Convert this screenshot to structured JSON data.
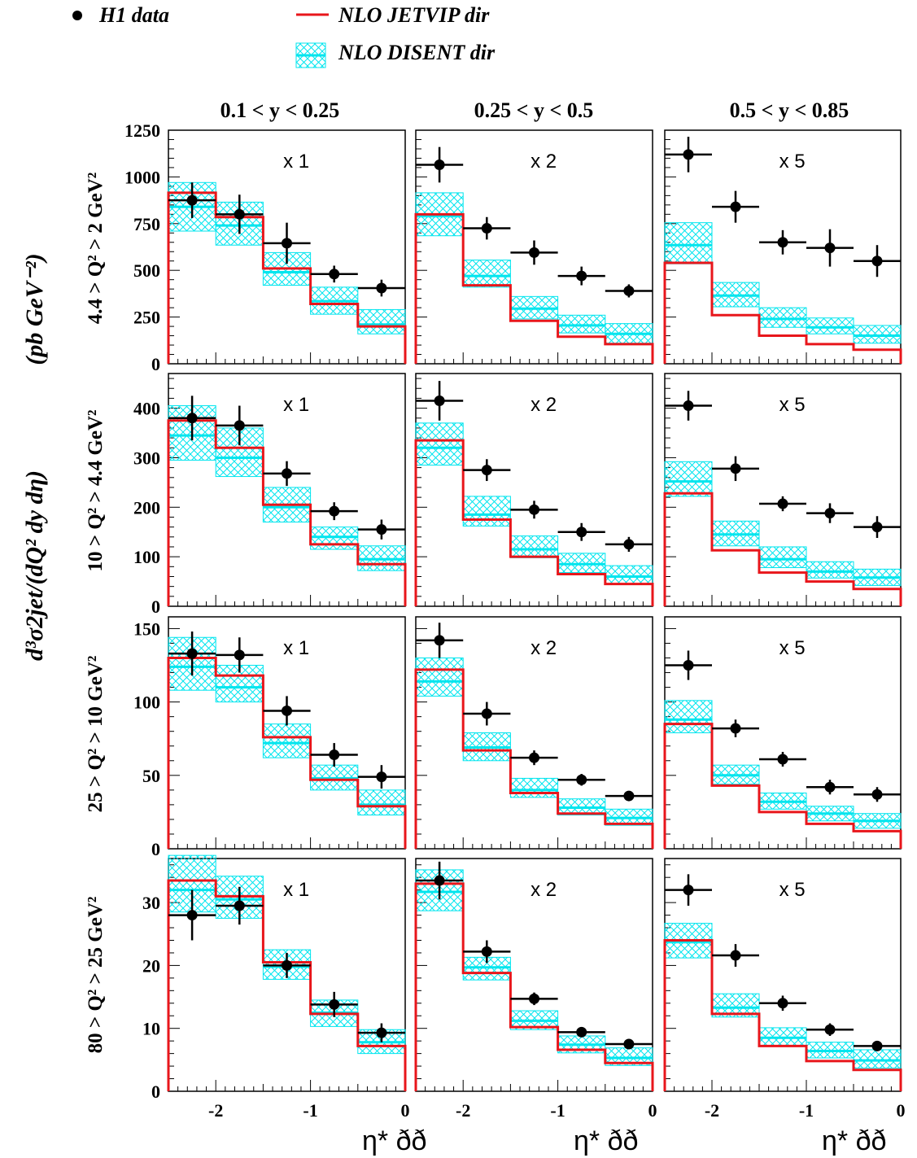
{
  "legend": {
    "data_label": "H1 data",
    "jetvip_label": "NLO JETVIP dir",
    "disent_label": "NLO DISENT dir"
  },
  "colors": {
    "data": "#000000",
    "jetvip": "#e8161b",
    "disent": "#00e5ee",
    "frame": "#000000"
  },
  "axis": {
    "ylabel_main": "d³σ2jet/(dQ² dy dη)",
    "ylabel_units": "(pb GeV⁻²)",
    "xlabel": "η* ðð",
    "xticks": [
      -2,
      -1,
      0
    ],
    "xlim": [
      -2.5,
      0
    ]
  },
  "columns": [
    {
      "label": "0.1 < y < 0.25",
      "scale": "x 1"
    },
    {
      "label": "0.25 < y < 0.5",
      "scale": "x 2"
    },
    {
      "label": "0.5 < y < 0.85",
      "scale": "x 5"
    }
  ],
  "rows": [
    {
      "label": "4.4 > Q² > 2 GeV²",
      "ylim": [
        0,
        1250
      ],
      "yticks": [
        0,
        250,
        500,
        750,
        1000,
        1250
      ]
    },
    {
      "label": "10 > Q² > 4.4 GeV²",
      "ylim": [
        0,
        470
      ],
      "yticks": [
        0,
        100,
        200,
        300,
        400
      ]
    },
    {
      "label": "25 > Q² > 10 GeV²",
      "ylim": [
        0,
        158
      ],
      "yticks": [
        0,
        50,
        100,
        150
      ]
    },
    {
      "label": "80 > Q² > 25 GeV²",
      "ylim": [
        0,
        37
      ],
      "yticks": [
        0,
        10,
        20,
        30
      ]
    }
  ],
  "chart_data": {
    "type": "scatter",
    "x_bin_edges": [
      -2.5,
      -2.0,
      -1.5,
      -1.0,
      -0.5,
      0.0
    ],
    "panels": [
      {
        "row": 0,
        "col": 0,
        "data": [
          {
            "x": -2.25,
            "y": 875,
            "err": 95
          },
          {
            "x": -1.75,
            "y": 800,
            "err": 105
          },
          {
            "x": -1.25,
            "y": 645,
            "err": 110
          },
          {
            "x": -0.75,
            "y": 480,
            "err": 45
          },
          {
            "x": -0.25,
            "y": 405,
            "err": 45
          }
        ],
        "jetvip": [
          915,
          785,
          510,
          320,
          200
        ],
        "disent": [
          {
            "c": 840,
            "lo": 710,
            "hi": 970
          },
          {
            "c": 740,
            "lo": 635,
            "hi": 865
          },
          {
            "c": 490,
            "lo": 420,
            "hi": 595
          },
          {
            "c": 335,
            "lo": 265,
            "hi": 410
          },
          {
            "c": 210,
            "lo": 160,
            "hi": 290
          }
        ]
      },
      {
        "row": 0,
        "col": 1,
        "data": [
          {
            "x": -2.25,
            "y": 1065,
            "err": 95
          },
          {
            "x": -1.75,
            "y": 725,
            "err": 60
          },
          {
            "x": -1.25,
            "y": 595,
            "err": 65
          },
          {
            "x": -0.75,
            "y": 470,
            "err": 50
          },
          {
            "x": -0.25,
            "y": 390,
            "err": 35
          }
        ],
        "jetvip": [
          800,
          420,
          230,
          145,
          105
        ],
        "disent": [
          {
            "c": 790,
            "lo": 685,
            "hi": 915
          },
          {
            "c": 470,
            "lo": 410,
            "hi": 555
          },
          {
            "c": 295,
            "lo": 240,
            "hi": 360
          },
          {
            "c": 205,
            "lo": 165,
            "hi": 260
          },
          {
            "c": 160,
            "lo": 110,
            "hi": 215
          }
        ]
      },
      {
        "row": 0,
        "col": 2,
        "data": [
          {
            "x": -2.25,
            "y": 1120,
            "err": 95
          },
          {
            "x": -1.75,
            "y": 840,
            "err": 85
          },
          {
            "x": -1.25,
            "y": 650,
            "err": 65
          },
          {
            "x": -0.75,
            "y": 620,
            "err": 100
          },
          {
            "x": -0.25,
            "y": 550,
            "err": 85
          }
        ],
        "jetvip": [
          540,
          260,
          150,
          105,
          75
        ],
        "disent": [
          {
            "c": 635,
            "lo": 535,
            "hi": 755
          },
          {
            "c": 365,
            "lo": 305,
            "hi": 435
          },
          {
            "c": 240,
            "lo": 195,
            "hi": 300
          },
          {
            "c": 195,
            "lo": 160,
            "hi": 245
          },
          {
            "c": 150,
            "lo": 110,
            "hi": 205
          }
        ]
      },
      {
        "row": 1,
        "col": 0,
        "data": [
          {
            "x": -2.25,
            "y": 380,
            "err": 45
          },
          {
            "x": -1.75,
            "y": 365,
            "err": 40
          },
          {
            "x": -1.25,
            "y": 268,
            "err": 25
          },
          {
            "x": -0.75,
            "y": 192,
            "err": 18
          },
          {
            "x": -0.25,
            "y": 155,
            "err": 20
          }
        ],
        "jetvip": [
          375,
          320,
          205,
          125,
          85
        ],
        "disent": [
          {
            "c": 345,
            "lo": 295,
            "hi": 405
          },
          {
            "c": 300,
            "lo": 262,
            "hi": 360
          },
          {
            "c": 200,
            "lo": 170,
            "hi": 240
          },
          {
            "c": 140,
            "lo": 115,
            "hi": 160
          },
          {
            "c": 95,
            "lo": 72,
            "hi": 122
          }
        ]
      },
      {
        "row": 1,
        "col": 1,
        "data": [
          {
            "x": -2.25,
            "y": 415,
            "err": 40
          },
          {
            "x": -1.75,
            "y": 275,
            "err": 22
          },
          {
            "x": -1.25,
            "y": 195,
            "err": 18
          },
          {
            "x": -0.75,
            "y": 150,
            "err": 18
          },
          {
            "x": -0.25,
            "y": 125,
            "err": 15
          }
        ],
        "jetvip": [
          335,
          175,
          100,
          65,
          45
        ],
        "disent": [
          {
            "c": 320,
            "lo": 285,
            "hi": 370
          },
          {
            "c": 185,
            "lo": 162,
            "hi": 222
          },
          {
            "c": 115,
            "lo": 98,
            "hi": 142
          },
          {
            "c": 85,
            "lo": 68,
            "hi": 107
          },
          {
            "c": 60,
            "lo": 45,
            "hi": 82
          }
        ]
      },
      {
        "row": 1,
        "col": 2,
        "data": [
          {
            "x": -2.25,
            "y": 405,
            "err": 30
          },
          {
            "x": -1.75,
            "y": 278,
            "err": 25
          },
          {
            "x": -1.25,
            "y": 207,
            "err": 15
          },
          {
            "x": -0.75,
            "y": 188,
            "err": 20
          },
          {
            "x": -0.25,
            "y": 160,
            "err": 22
          }
        ],
        "jetvip": [
          228,
          113,
          68,
          50,
          35
        ],
        "disent": [
          {
            "c": 252,
            "lo": 222,
            "hi": 292
          },
          {
            "c": 145,
            "lo": 122,
            "hi": 172
          },
          {
            "c": 95,
            "lo": 78,
            "hi": 120
          },
          {
            "c": 70,
            "lo": 57,
            "hi": 90
          },
          {
            "c": 58,
            "lo": 42,
            "hi": 75
          }
        ]
      },
      {
        "row": 2,
        "col": 0,
        "data": [
          {
            "x": -2.25,
            "y": 133,
            "err": 15
          },
          {
            "x": -1.75,
            "y": 132,
            "err": 12
          },
          {
            "x": -1.25,
            "y": 94,
            "err": 10
          },
          {
            "x": -0.75,
            "y": 64,
            "err": 8
          },
          {
            "x": -0.25,
            "y": 49,
            "err": 8
          }
        ],
        "jetvip": [
          130,
          118,
          76,
          47,
          29
        ],
        "disent": [
          {
            "c": 124,
            "lo": 108,
            "hi": 144
          },
          {
            "c": 110,
            "lo": 100,
            "hi": 125
          },
          {
            "c": 72,
            "lo": 62,
            "hi": 85
          },
          {
            "c": 48,
            "lo": 40,
            "hi": 57
          },
          {
            "c": 30,
            "lo": 23,
            "hi": 40
          }
        ]
      },
      {
        "row": 2,
        "col": 1,
        "data": [
          {
            "x": -2.25,
            "y": 142,
            "err": 12
          },
          {
            "x": -1.75,
            "y": 92,
            "err": 8
          },
          {
            "x": -1.25,
            "y": 62,
            "err": 5
          },
          {
            "x": -0.75,
            "y": 47,
            "err": 4
          },
          {
            "x": -0.25,
            "y": 36,
            "err": 3
          }
        ],
        "jetvip": [
          122,
          67,
          38,
          24,
          17
        ],
        "disent": [
          {
            "c": 114,
            "lo": 104,
            "hi": 130
          },
          {
            "c": 69,
            "lo": 60,
            "hi": 79
          },
          {
            "c": 40,
            "lo": 35,
            "hi": 48
          },
          {
            "c": 28,
            "lo": 23,
            "hi": 34
          },
          {
            "c": 21,
            "lo": 16,
            "hi": 27
          }
        ]
      },
      {
        "row": 2,
        "col": 2,
        "data": [
          {
            "x": -2.25,
            "y": 125,
            "err": 10
          },
          {
            "x": -1.75,
            "y": 82,
            "err": 6
          },
          {
            "x": -1.25,
            "y": 61,
            "err": 5
          },
          {
            "x": -0.75,
            "y": 42,
            "err": 5
          },
          {
            "x": -0.25,
            "y": 37,
            "err": 5
          }
        ],
        "jetvip": [
          85,
          43,
          25,
          17,
          12
        ],
        "disent": [
          {
            "c": 88,
            "lo": 79,
            "hi": 101
          },
          {
            "c": 50,
            "lo": 44,
            "hi": 57
          },
          {
            "c": 32,
            "lo": 27,
            "hi": 38
          },
          {
            "c": 24,
            "lo": 19,
            "hi": 29
          },
          {
            "c": 19,
            "lo": 14,
            "hi": 24
          }
        ]
      },
      {
        "row": 3,
        "col": 0,
        "data": [
          {
            "x": -2.25,
            "y": 28,
            "err": 4
          },
          {
            "x": -1.75,
            "y": 29.5,
            "err": 3
          },
          {
            "x": -1.25,
            "y": 20,
            "err": 2
          },
          {
            "x": -0.75,
            "y": 13.8,
            "err": 2
          },
          {
            "x": -0.25,
            "y": 9.3,
            "err": 1.5
          }
        ],
        "jetvip": [
          33.5,
          31,
          20.5,
          12.3,
          7.2
        ],
        "disent": [
          {
            "c": 32,
            "lo": 28.5,
            "hi": 37.5
          },
          {
            "c": 30.5,
            "lo": 27.5,
            "hi": 34.2
          },
          {
            "c": 19.8,
            "lo": 17.8,
            "hi": 22.5
          },
          {
            "c": 12.5,
            "lo": 10.3,
            "hi": 14.5
          },
          {
            "c": 7.8,
            "lo": 6,
            "hi": 9.8
          }
        ]
      },
      {
        "row": 3,
        "col": 1,
        "data": [
          {
            "x": -2.25,
            "y": 33.5,
            "err": 3
          },
          {
            "x": -1.75,
            "y": 22.2,
            "err": 1.8
          },
          {
            "x": -1.25,
            "y": 14.7,
            "err": 1
          },
          {
            "x": -0.75,
            "y": 9.4,
            "err": 0.7
          },
          {
            "x": -0.25,
            "y": 7.5,
            "err": 0.5
          }
        ],
        "jetvip": [
          33,
          18.8,
          10.2,
          6.6,
          4.5
        ],
        "disent": [
          {
            "c": 31.7,
            "lo": 28.7,
            "hi": 35.2
          },
          {
            "c": 19.7,
            "lo": 17.7,
            "hi": 21.3
          },
          {
            "c": 11.2,
            "lo": 9.8,
            "hi": 12.8
          },
          {
            "c": 7.4,
            "lo": 6.1,
            "hi": 8.8
          },
          {
            "c": 5.3,
            "lo": 4.1,
            "hi": 6.9
          }
        ]
      },
      {
        "row": 3,
        "col": 2,
        "data": [
          {
            "x": -2.25,
            "y": 32,
            "err": 2.5
          },
          {
            "x": -1.75,
            "y": 21.6,
            "err": 1.8
          },
          {
            "x": -1.25,
            "y": 14,
            "err": 1.2
          },
          {
            "x": -0.75,
            "y": 9.8,
            "err": 1
          },
          {
            "x": -0.25,
            "y": 7.2,
            "err": 0.6
          }
        ],
        "jetvip": [
          24,
          12.3,
          7.2,
          4.8,
          3.4
        ],
        "disent": [
          {
            "c": 23.7,
            "lo": 21.2,
            "hi": 26.7
          },
          {
            "c": 13.3,
            "lo": 11.8,
            "hi": 15.5
          },
          {
            "c": 8.5,
            "lo": 7.3,
            "hi": 10.1
          },
          {
            "c": 6.4,
            "lo": 5.3,
            "hi": 7.8
          },
          {
            "c": 4.9,
            "lo": 3.7,
            "hi": 6.6
          }
        ]
      }
    ]
  }
}
